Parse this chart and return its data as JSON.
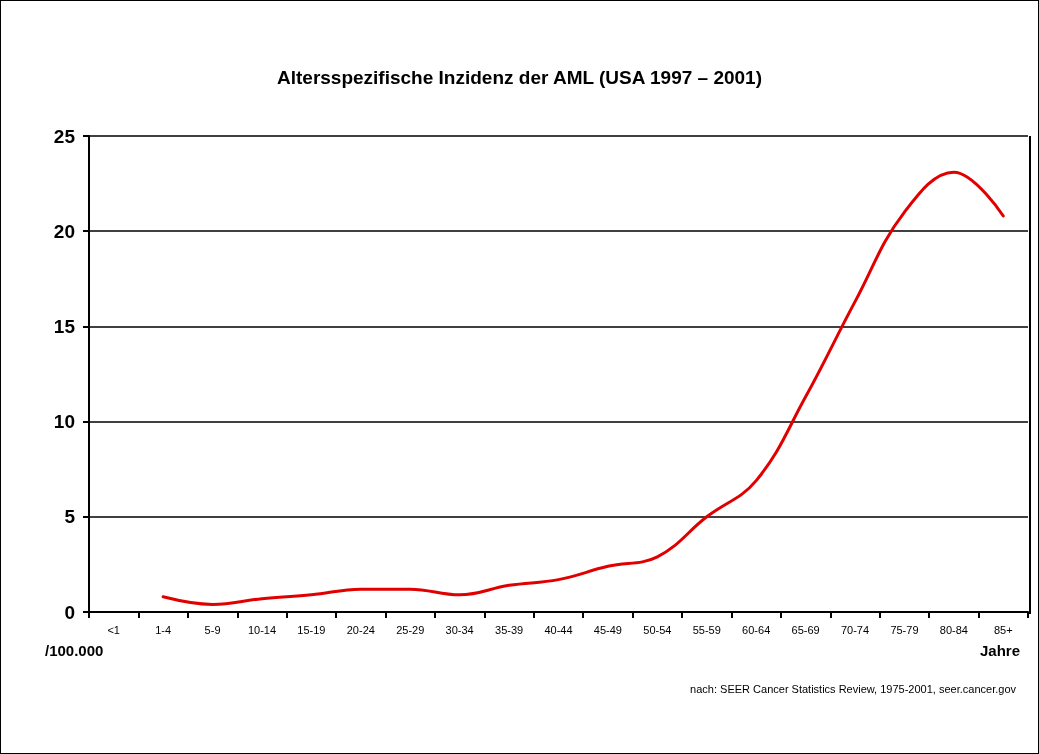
{
  "chart_data": {
    "type": "line",
    "title": "Altersspezifische Inzidenz der AML (USA 1997 – 2001)",
    "ylabel": "/100.000",
    "xlabel": "Jahre",
    "annotations": [
      "nach: SEER Cancer Statistics Review, 1975-2001, seer.cancer.gov"
    ],
    "categories": [
      "<1",
      "1-4",
      "5-9",
      "10-14",
      "15-19",
      "20-24",
      "25-29",
      "30-34",
      "35-39",
      "40-44",
      "45-49",
      "50-54",
      "55-59",
      "60-64",
      "65-69",
      "70-74",
      "75-79",
      "80-84",
      "85+"
    ],
    "series": [
      {
        "color": "#e00000",
        "values": [
          null,
          0.8,
          0.4,
          0.7,
          0.9,
          1.2,
          1.2,
          0.9,
          1.4,
          1.7,
          2.4,
          2.9,
          5.0,
          6.9,
          11.3,
          16.3,
          21.0,
          23.1,
          20.8
        ]
      }
    ],
    "ylim": [
      0,
      25
    ],
    "yticks": [
      0,
      5,
      10,
      15,
      20,
      25
    ],
    "grid": "y",
    "marker": "none",
    "line_style": "solid"
  }
}
